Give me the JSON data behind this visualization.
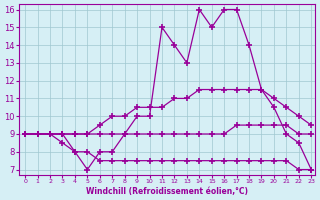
{
  "background_color": "#d6eff5",
  "line_color": "#990099",
  "xlabel": "Windchill (Refroidissement éolien,°C)",
  "xlim": [
    0,
    23
  ],
  "ylim": [
    7,
    16
  ],
  "yticks": [
    7,
    8,
    9,
    10,
    11,
    12,
    13,
    14,
    15,
    16
  ],
  "xticks": [
    0,
    1,
    2,
    3,
    4,
    5,
    6,
    7,
    8,
    9,
    10,
    11,
    12,
    13,
    14,
    15,
    16,
    17,
    18,
    19,
    20,
    21,
    22,
    23
  ],
  "line1_x": [
    0,
    1,
    2,
    3,
    4,
    5,
    6,
    7,
    8,
    9,
    10,
    11,
    12,
    13,
    14,
    15,
    16,
    17,
    18,
    19,
    20,
    21,
    22,
    23
  ],
  "line1_y": [
    9,
    9,
    9,
    9,
    8,
    7,
    8,
    8,
    9,
    10,
    10,
    15,
    14,
    13,
    16,
    15,
    16,
    16,
    14,
    11.5,
    10.5,
    9,
    8.5,
    7
  ],
  "line2_x": [
    0,
    1,
    2,
    3,
    4,
    5,
    6,
    7,
    8,
    9,
    10,
    11,
    12,
    13,
    14,
    15,
    16,
    17,
    18,
    19,
    20,
    21,
    22,
    23
  ],
  "line2_y": [
    9,
    9,
    9,
    9,
    9,
    9,
    9.5,
    10,
    10,
    10.5,
    10.5,
    10.5,
    11,
    11,
    11.5,
    11.5,
    11.5,
    11.5,
    11.5,
    11.5,
    11,
    10.5,
    10,
    9.5
  ],
  "line3_x": [
    0,
    1,
    2,
    3,
    4,
    5,
    6,
    7,
    8,
    9,
    10,
    11,
    12,
    13,
    14,
    15,
    16,
    17,
    18,
    19,
    20,
    21,
    22,
    23
  ],
  "line3_y": [
    9,
    9,
    9,
    9,
    9,
    9,
    9,
    9,
    9,
    9,
    9,
    9,
    9,
    9,
    9,
    9,
    9,
    9.5,
    9.5,
    9.5,
    9.5,
    9.5,
    9,
    9
  ],
  "line4_x": [
    0,
    1,
    2,
    3,
    4,
    5,
    6,
    7,
    8,
    9,
    10,
    11,
    12,
    13,
    14,
    15,
    16,
    17,
    18,
    19,
    20,
    21,
    22,
    23
  ],
  "line4_y": [
    9,
    9,
    9,
    8.5,
    8,
    8,
    7.5,
    7.5,
    7.5,
    7.5,
    7.5,
    7.5,
    7.5,
    7.5,
    7.5,
    7.5,
    7.5,
    7.5,
    7.5,
    7.5,
    7.5,
    7.5,
    7,
    7
  ]
}
